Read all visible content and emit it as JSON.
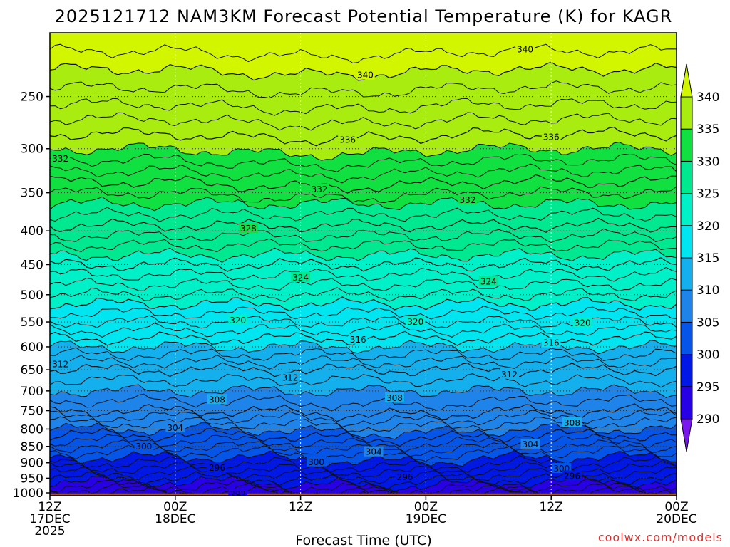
{
  "chart_data": {
    "type": "heatmap",
    "title": "2025121712 NAM3KM Forecast Potential Temperature (K) for KAGR",
    "xlabel": "Forecast Time (UTC)",
    "ylabel": "",
    "watermark": "coolwx.com/models",
    "x_unit": "forecast_hours",
    "xlim": [
      0,
      60
    ],
    "y_unit": "hPa",
    "ylim": [
      1010,
      200
    ],
    "y_scale": "log",
    "y_ticks": [
      250,
      300,
      350,
      400,
      450,
      500,
      550,
      600,
      650,
      700,
      750,
      800,
      850,
      900,
      950,
      1000
    ],
    "x_ticks": [
      {
        "hour": 0,
        "line1": "12Z",
        "line2": "17DEC",
        "line3": "2025"
      },
      {
        "hour": 12,
        "line1": "00Z",
        "line2": "18DEC",
        "line3": ""
      },
      {
        "hour": 24,
        "line1": "12Z",
        "line2": "",
        "line3": ""
      },
      {
        "hour": 36,
        "line1": "00Z",
        "line2": "19DEC",
        "line3": ""
      },
      {
        "hour": 48,
        "line1": "12Z",
        "line2": "",
        "line3": ""
      },
      {
        "hour": 60,
        "line1": "00Z",
        "line2": "20DEC",
        "line3": ""
      }
    ],
    "grid": true,
    "terrain_pressure": 1002,
    "colorbar": {
      "labels": [
        "290",
        "295",
        "300",
        "305",
        "310",
        "315",
        "320",
        "325",
        "330",
        "335",
        "340"
      ],
      "values": [
        290,
        295,
        300,
        305,
        310,
        315,
        320,
        325,
        330,
        335,
        340
      ],
      "colors": [
        "#7a17ee",
        "#2800e6",
        "#0018e6",
        "#0555e8",
        "#1e84ea",
        "#14b0ee",
        "#00e6f0",
        "#00f0c8",
        "#00e890",
        "#10e040",
        "#a8ec10",
        "#d2f600"
      ]
    },
    "colorbar_position": "right",
    "isotherm_levels": [
      292,
      296,
      300,
      304,
      308,
      312,
      316,
      320,
      324,
      328,
      332,
      336,
      340
    ],
    "theta_profile": [
      {
        "p": 1000,
        "theta": 292
      },
      {
        "p": 975,
        "theta": 294
      },
      {
        "p": 950,
        "theta": 296
      },
      {
        "p": 900,
        "theta": 299
      },
      {
        "p": 850,
        "theta": 302
      },
      {
        "p": 800,
        "theta": 305
      },
      {
        "p": 750,
        "theta": 308
      },
      {
        "p": 700,
        "theta": 310
      },
      {
        "p": 650,
        "theta": 312
      },
      {
        "p": 600,
        "theta": 315
      },
      {
        "p": 550,
        "theta": 318
      },
      {
        "p": 500,
        "theta": 321
      },
      {
        "p": 450,
        "theta": 324
      },
      {
        "p": 400,
        "theta": 327.5
      },
      {
        "p": 350,
        "theta": 331
      },
      {
        "p": 300,
        "theta": 335
      },
      {
        "p": 250,
        "theta": 338.5
      },
      {
        "p": 200,
        "theta": 342
      }
    ],
    "contour_labels": [
      {
        "value": "340",
        "hour": 45.5,
        "p": 212
      },
      {
        "value": "340",
        "hour": 30.2,
        "p": 232
      },
      {
        "value": "336",
        "hour": 28.5,
        "p": 291
      },
      {
        "value": "336",
        "hour": 48.0,
        "p": 288
      },
      {
        "value": "332",
        "hour": 1.0,
        "p": 311
      },
      {
        "value": "332",
        "hour": 25.8,
        "p": 346
      },
      {
        "value": "332",
        "hour": 40.0,
        "p": 359
      },
      {
        "value": "328",
        "hour": 19.0,
        "p": 397
      },
      {
        "value": "324",
        "hour": 24.0,
        "p": 471
      },
      {
        "value": "324",
        "hour": 42.0,
        "p": 478
      },
      {
        "value": "320",
        "hour": 18.0,
        "p": 547
      },
      {
        "value": "320",
        "hour": 35.0,
        "p": 550
      },
      {
        "value": "320",
        "hour": 51.0,
        "p": 552
      },
      {
        "value": "316",
        "hour": 29.5,
        "p": 585
      },
      {
        "value": "316",
        "hour": 48.0,
        "p": 592
      },
      {
        "value": "312",
        "hour": 1.0,
        "p": 638
      },
      {
        "value": "312",
        "hour": 23.0,
        "p": 669
      },
      {
        "value": "312",
        "hour": 44.0,
        "p": 661
      },
      {
        "value": "308",
        "hour": 16.0,
        "p": 722
      },
      {
        "value": "308",
        "hour": 33.0,
        "p": 718
      },
      {
        "value": "308",
        "hour": 50.0,
        "p": 783
      },
      {
        "value": "304",
        "hour": 12.0,
        "p": 797
      },
      {
        "value": "304",
        "hour": 31.0,
        "p": 867
      },
      {
        "value": "304",
        "hour": 46.0,
        "p": 844
      },
      {
        "value": "300",
        "hour": 9.0,
        "p": 851
      },
      {
        "value": "300",
        "hour": 25.5,
        "p": 898
      },
      {
        "value": "300",
        "hour": 49.0,
        "p": 919
      },
      {
        "value": "296",
        "hour": 16.0,
        "p": 917
      },
      {
        "value": "296",
        "hour": 34.0,
        "p": 947
      },
      {
        "value": "296",
        "hour": 50.0,
        "p": 943
      },
      {
        "value": "292",
        "hour": 18.0,
        "p": 1005
      }
    ]
  }
}
